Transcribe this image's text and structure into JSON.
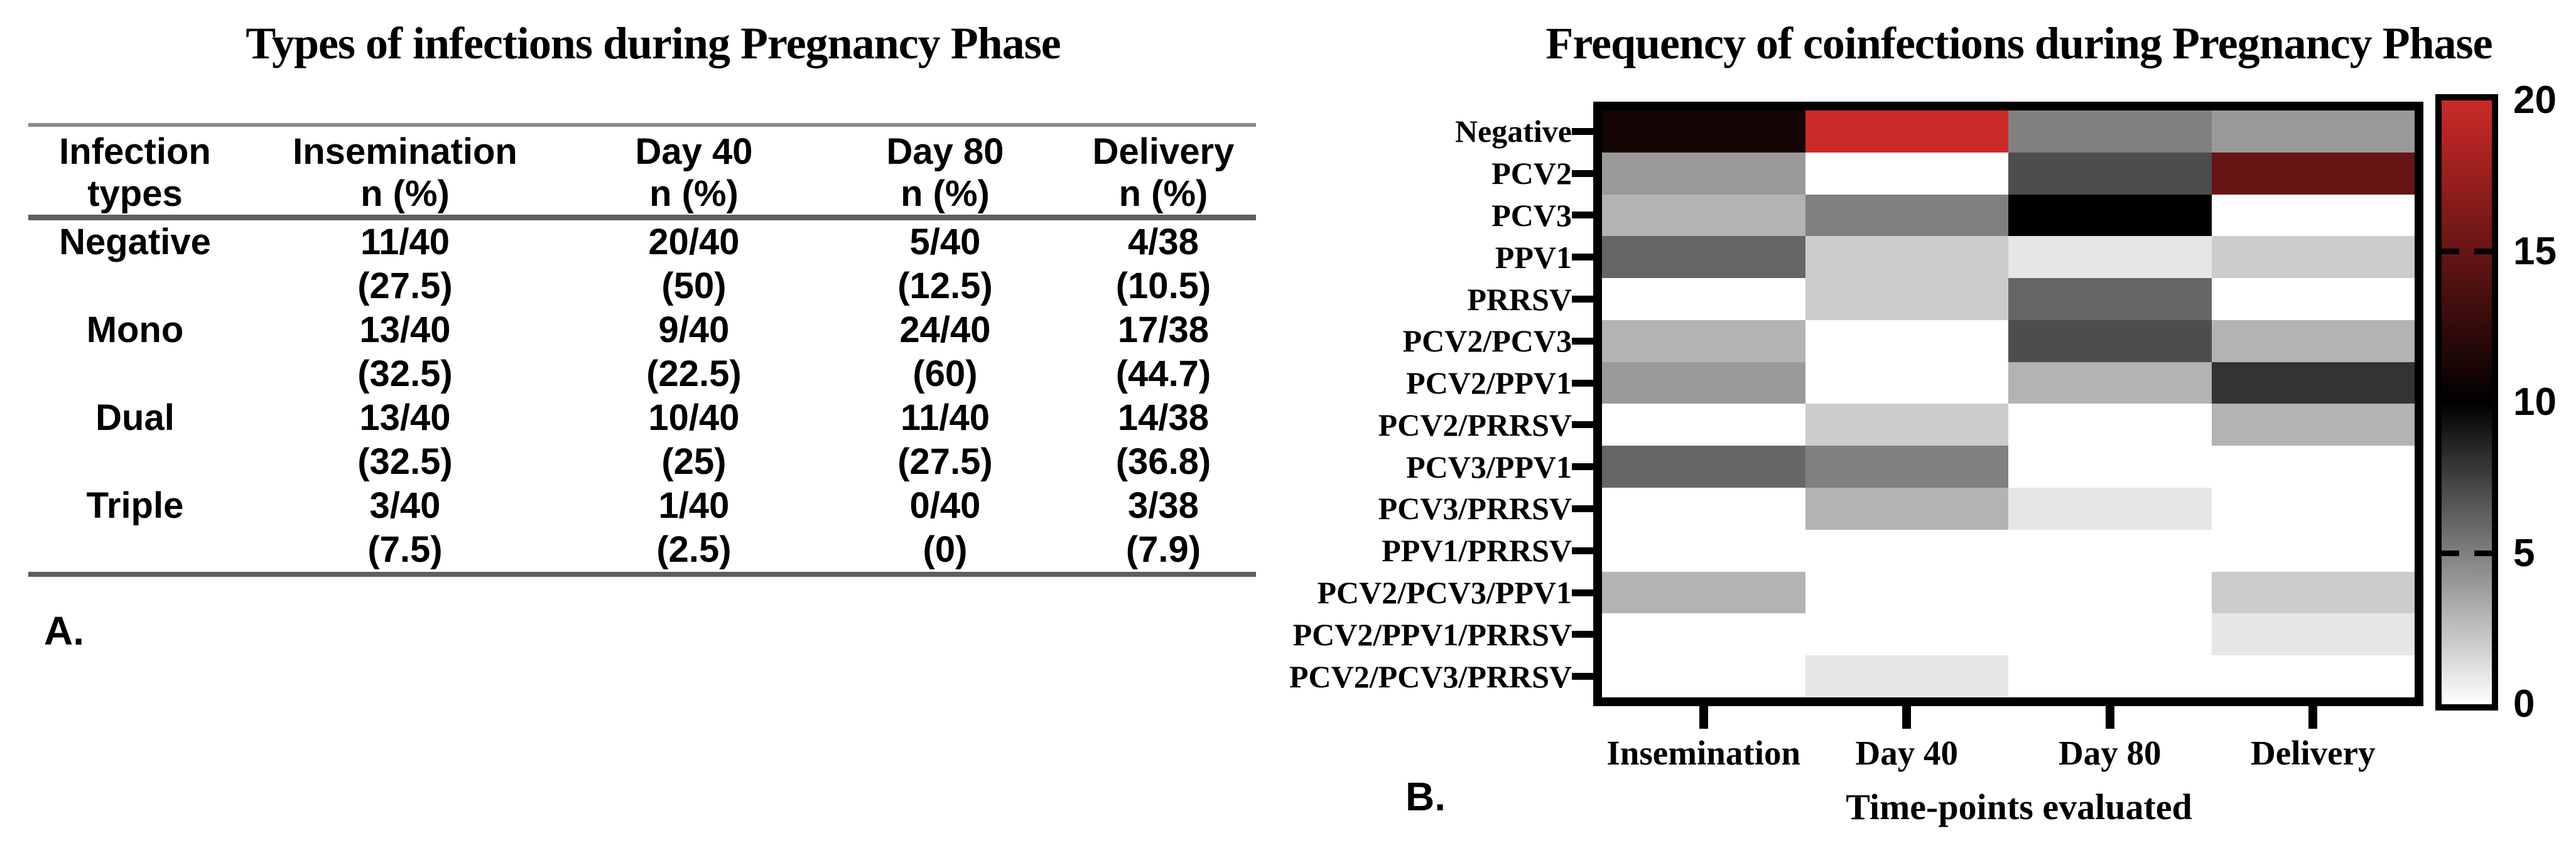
{
  "chart_data": [
    {
      "type": "table",
      "panel": "A.",
      "title": "Types of infections during Pregnancy Phase",
      "columns": [
        {
          "line1": "Infection",
          "line2": "types"
        },
        {
          "line1": "Insemination",
          "line2": "n (%)"
        },
        {
          "line1": "Day 40",
          "line2": "n (%)"
        },
        {
          "line1": "Day 80",
          "line2": "n (%)"
        },
        {
          "line1": "Delivery",
          "line2": "n (%)"
        }
      ],
      "rows": [
        {
          "label": "Negative",
          "counts": [
            "11/40",
            "20/40",
            "5/40",
            "4/38"
          ],
          "pcts": [
            "(27.5)",
            "(50)",
            "(12.5)",
            "(10.5)"
          ]
        },
        {
          "label": "Mono",
          "counts": [
            "13/40",
            "9/40",
            "24/40",
            "17/38"
          ],
          "pcts": [
            "(32.5)",
            "(22.5)",
            "(60)",
            "(44.7)"
          ]
        },
        {
          "label": "Dual",
          "counts": [
            "13/40",
            "10/40",
            "11/40",
            "14/38"
          ],
          "pcts": [
            "(32.5)",
            "(25)",
            "(27.5)",
            "(36.8)"
          ]
        },
        {
          "label": "Triple",
          "counts": [
            "3/40",
            "1/40",
            "0/40",
            "3/38"
          ],
          "pcts": [
            "(7.5)",
            "(2.5)",
            "(0)",
            "(7.9)"
          ]
        }
      ]
    },
    {
      "type": "heatmap",
      "panel": "B.",
      "title": "Frequency of coinfections during Pregnancy Phase",
      "xlabel": "Time-points evaluated",
      "x_categories": [
        "Insemination",
        "Day 40",
        "Day 80",
        "Delivery"
      ],
      "y_categories": [
        "Negative",
        "PCV2",
        "PCV3",
        "PPV1",
        "PRRSV",
        "PCV2/PCV3",
        "PCV2/PPV1",
        "PCV2/PRRSV",
        "PCV3/PPV1",
        "PCV3/PRRSV",
        "PPV1/PRRSV",
        "PCV2/PCV3/PPV1",
        "PCV2/PPV1/PRRSV",
        "PCV2/PCV3/PRRSV"
      ],
      "values": [
        [
          11,
          20,
          5,
          4
        ],
        [
          4,
          0,
          7,
          15
        ],
        [
          3,
          5,
          10,
          0
        ],
        [
          6,
          2,
          1,
          2
        ],
        [
          0,
          2,
          6,
          0
        ],
        [
          3,
          0,
          7,
          3
        ],
        [
          4,
          0,
          3,
          8
        ],
        [
          0,
          2,
          0,
          3
        ],
        [
          6,
          5,
          0,
          0
        ],
        [
          0,
          3,
          1,
          0
        ],
        [
          0,
          0,
          0,
          0
        ],
        [
          3,
          0,
          0,
          2
        ],
        [
          0,
          0,
          0,
          1
        ],
        [
          0,
          1,
          0,
          0
        ]
      ],
      "scale": {
        "min": 0,
        "max": 20,
        "mid": 10,
        "ticks": [
          20,
          15,
          10,
          5,
          0
        ],
        "dash_ticks": [
          15,
          5
        ],
        "color_low": "#ffffff",
        "color_mid": "#000000",
        "color_high": "#cc2a28"
      },
      "legend_position": "right",
      "grid": false
    }
  ]
}
